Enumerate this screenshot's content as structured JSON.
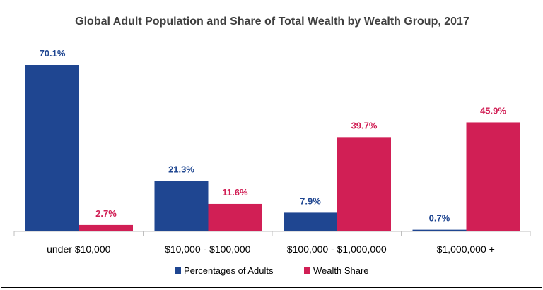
{
  "chart_data": {
    "type": "bar",
    "title": "Global Adult Population and Share of Total Wealth by Wealth Group, 2017",
    "categories": [
      "under $10,000",
      "$10,000 - $100,000",
      "$100,000 - $1,000,000",
      "$1,000,000 +"
    ],
    "series": [
      {
        "name": "Percentages of Adults",
        "color": "#1f4691",
        "values": [
          70.1,
          21.3,
          7.9,
          0.7
        ],
        "labels": [
          "70.1%",
          "21.3%",
          "7.9%",
          "0.7%"
        ]
      },
      {
        "name": "Wealth Share",
        "color": "#d11f55",
        "values": [
          2.7,
          11.6,
          39.7,
          45.9
        ],
        "labels": [
          "2.7%",
          "11.6%",
          "39.7%",
          "45.9%"
        ]
      }
    ],
    "xlabel": "",
    "ylabel": "",
    "ylim": [
      0,
      70.1
    ],
    "grid": false,
    "legend": "bottom-center"
  }
}
